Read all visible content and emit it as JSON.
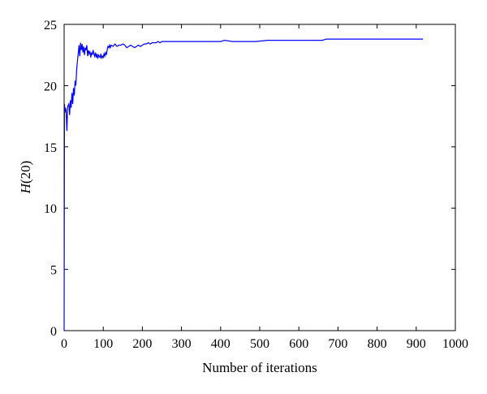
{
  "chart_data": {
    "type": "line",
    "xlabel": "Number of iterations",
    "ylabel_main": "H",
    "ylabel_arg": "(20)",
    "xlim": [
      0,
      1000
    ],
    "ylim": [
      0,
      25
    ],
    "xticks": [
      0,
      100,
      200,
      300,
      400,
      500,
      600,
      700,
      800,
      900,
      1000
    ],
    "yticks": [
      0,
      5,
      10,
      15,
      20,
      25
    ],
    "grid": false,
    "line_color": "#0000ff",
    "series": [
      {
        "x": [
          0,
          1,
          2,
          3,
          5,
          7,
          9,
          12,
          14,
          16,
          18,
          20,
          22,
          24,
          26,
          28,
          30,
          32,
          34,
          36,
          38,
          40,
          42,
          44,
          46,
          48,
          50,
          52,
          54,
          56,
          58,
          60,
          62,
          64,
          66,
          68,
          70,
          72,
          74,
          76,
          78,
          80,
          82,
          84,
          86,
          88,
          90,
          92,
          94,
          96,
          98,
          100,
          102,
          104,
          106,
          108,
          110,
          112,
          114,
          116,
          118,
          120,
          125,
          130,
          135,
          140,
          145,
          150,
          155,
          160,
          165,
          170,
          175,
          180,
          185,
          190,
          195,
          200,
          205,
          210,
          215,
          220,
          225,
          230,
          235,
          240,
          245,
          250,
          260,
          280,
          300,
          330,
          360,
          390,
          400,
          410,
          430,
          460,
          480,
          490,
          520,
          560,
          600,
          620,
          640,
          660,
          670,
          680,
          700,
          720,
          740,
          760,
          780,
          800,
          820,
          840,
          860,
          880,
          900,
          917
        ],
        "y": [
          0,
          18.5,
          17.8,
          18.2,
          18.0,
          16.3,
          18.3,
          18.5,
          17.6,
          18.8,
          18.2,
          19.4,
          18.5,
          19.8,
          19.2,
          20.4,
          20.0,
          21.3,
          22.0,
          22.6,
          23.3,
          22.4,
          23.5,
          22.9,
          23.4,
          22.7,
          23.2,
          22.5,
          23.1,
          22.9,
          23.3,
          22.4,
          22.9,
          22.6,
          22.8,
          22.3,
          22.7,
          22.5,
          22.9,
          22.6,
          22.4,
          22.7,
          22.3,
          22.6,
          22.2,
          22.5,
          22.4,
          22.3,
          22.6,
          22.2,
          22.4,
          22.3,
          22.6,
          22.4,
          22.7,
          22.5,
          22.9,
          23.2,
          23.1,
          23.3,
          23.1,
          23.3,
          23.2,
          23.4,
          23.2,
          23.3,
          23.3,
          23.4,
          23.3,
          23.1,
          23.2,
          23.3,
          23.2,
          23.1,
          23.2,
          23.3,
          23.2,
          23.3,
          23.4,
          23.4,
          23.5,
          23.4,
          23.5,
          23.5,
          23.5,
          23.6,
          23.5,
          23.6,
          23.6,
          23.6,
          23.6,
          23.6,
          23.6,
          23.6,
          23.6,
          23.7,
          23.6,
          23.6,
          23.6,
          23.6,
          23.7,
          23.7,
          23.7,
          23.7,
          23.7,
          23.7,
          23.8,
          23.8,
          23.8,
          23.8,
          23.8,
          23.8,
          23.8,
          23.8,
          23.8,
          23.8,
          23.8,
          23.8,
          23.8,
          23.8
        ]
      }
    ]
  }
}
